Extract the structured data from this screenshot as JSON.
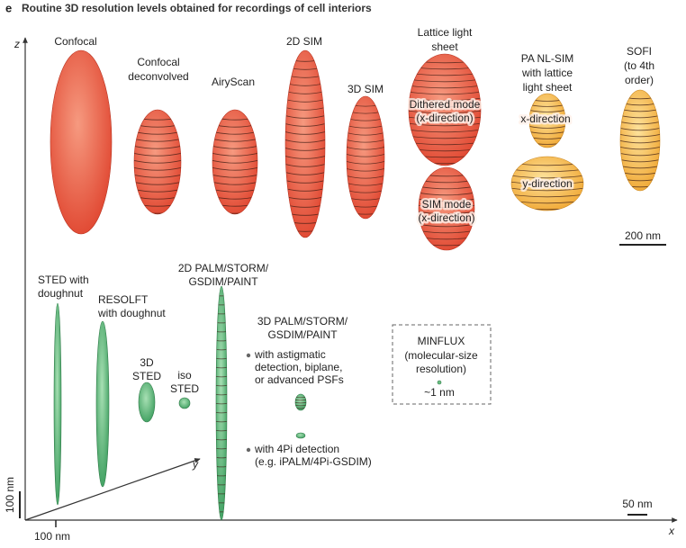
{
  "panel_label": "e",
  "title": "Routine 3D resolution levels obtained for recordings of cell interiors",
  "axes": {
    "z": "z",
    "x": "x",
    "y": "y"
  },
  "top_labels": [
    [
      "Confocal"
    ],
    [
      "Confocal",
      "deconvolved"
    ],
    [
      "AiryScan"
    ],
    [
      "2D SIM"
    ],
    [
      "3D SIM"
    ],
    [
      "Lattice light",
      "sheet"
    ],
    [
      "PA NL-SIM",
      "with lattice",
      "light sheet"
    ],
    [
      "SOFI",
      "(to 4th",
      "order)"
    ]
  ],
  "inner_labels": [
    [
      "Dithered mode",
      "(x-direction)"
    ],
    [
      "SIM mode",
      "(x-direction)"
    ],
    [
      "x-direction"
    ],
    [
      "y-direction"
    ]
  ],
  "bottom_labels": [
    [
      "STED with",
      "doughnut"
    ],
    [
      "RESOLFT",
      "with doughnut"
    ],
    [
      "3D",
      "STED"
    ],
    [
      "iso",
      "STED"
    ],
    [
      "2D PALM/STORM/",
      "GSDIM/PAINT"
    ],
    [
      "3D PALM/STORM/",
      "GSDIM/PAINT"
    ]
  ],
  "bullets": [
    [
      "with astigmatic",
      "detection, biplane,",
      "or advanced PSFs"
    ],
    [
      "with 4Pi detection",
      "(e.g. iPALM/4Pi-GSDIM)"
    ]
  ],
  "minflux": [
    "MINFLUX",
    "(molecular-size",
    "resolution)",
    "~1 nm"
  ],
  "scale_bars": {
    "top": "200 nm",
    "bottom": "50 nm",
    "vertical": "100 nm",
    "horizontal": "100 nm"
  }
}
